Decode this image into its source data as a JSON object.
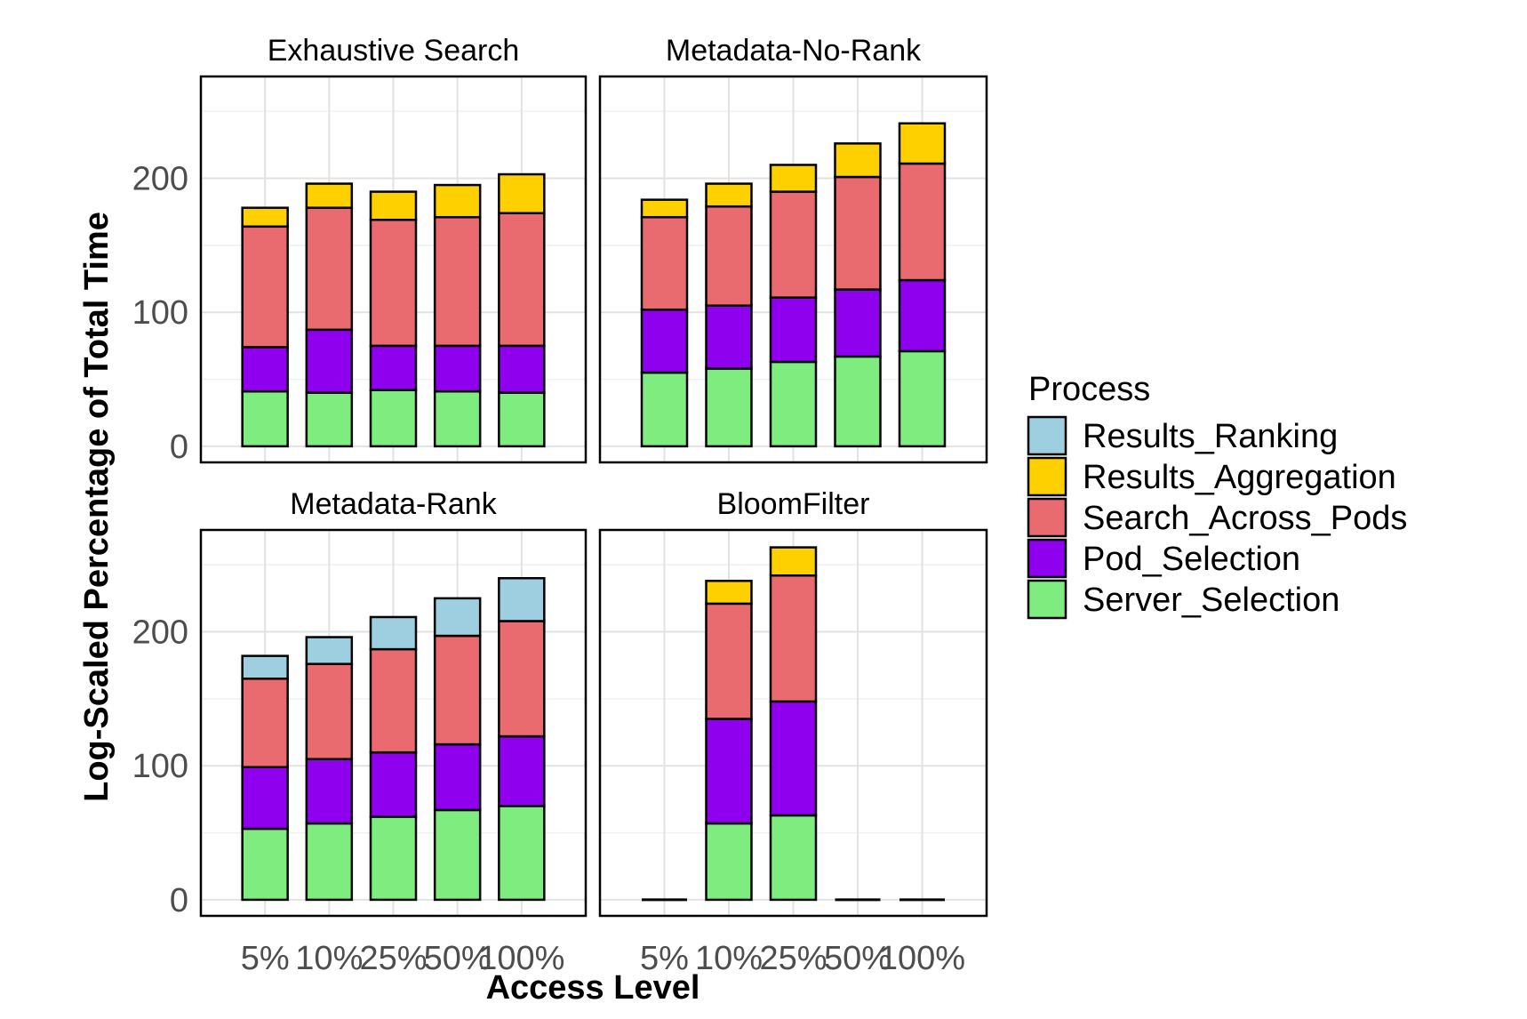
{
  "chart_data": {
    "type": "bar",
    "stacked": true,
    "facets": [
      "Exhaustive Search",
      "Metadata-No-Rank",
      "Metadata-Rank",
      "BloomFilter"
    ],
    "categories": [
      "5%",
      "10%",
      "25%",
      "50%",
      "100%"
    ],
    "xlabel": "Access Level",
    "ylabel": "Log-Scaled Percentage of Total Time",
    "ylim": [
      -12,
      276
    ],
    "yticks": [
      0,
      100,
      200
    ],
    "grid": true,
    "legend": {
      "title": "Process",
      "placement": "right",
      "entries": [
        "Results_Ranking",
        "Results_Aggregation",
        "Search_Across_Pods",
        "Pod_Selection",
        "Server_Selection"
      ]
    },
    "colors": {
      "Server_Selection": "#7fec7f",
      "Pod_Selection": "#8f00ef",
      "Search_Across_Pods": "#ea6b6f",
      "Results_Aggregation": "#ffd000",
      "Results_Ranking": "#9ecfe0"
    },
    "panels": [
      {
        "title": "Exhaustive Search",
        "series": [
          {
            "name": "Server_Selection",
            "values": [
              41,
              40,
              42,
              41,
              40
            ]
          },
          {
            "name": "Pod_Selection",
            "values": [
              33,
              47,
              33,
              34,
              35
            ]
          },
          {
            "name": "Search_Across_Pods",
            "values": [
              90,
              91,
              94,
              96,
              99
            ]
          },
          {
            "name": "Results_Aggregation",
            "values": [
              14,
              18,
              21,
              24,
              29
            ]
          },
          {
            "name": "Results_Ranking",
            "values": [
              0,
              0,
              0,
              0,
              0
            ]
          }
        ]
      },
      {
        "title": "Metadata-No-Rank",
        "series": [
          {
            "name": "Server_Selection",
            "values": [
              55,
              58,
              63,
              67,
              71
            ]
          },
          {
            "name": "Pod_Selection",
            "values": [
              47,
              47,
              48,
              50,
              53
            ]
          },
          {
            "name": "Search_Across_Pods",
            "values": [
              69,
              74,
              79,
              84,
              87
            ]
          },
          {
            "name": "Results_Aggregation",
            "values": [
              13,
              17,
              20,
              25,
              30
            ]
          },
          {
            "name": "Results_Ranking",
            "values": [
              0,
              0,
              0,
              0,
              0
            ]
          }
        ]
      },
      {
        "title": "Metadata-Rank",
        "series": [
          {
            "name": "Server_Selection",
            "values": [
              53,
              57,
              62,
              67,
              70
            ]
          },
          {
            "name": "Pod_Selection",
            "values": [
              46,
              48,
              48,
              49,
              52
            ]
          },
          {
            "name": "Search_Across_Pods",
            "values": [
              66,
              71,
              77,
              81,
              86
            ]
          },
          {
            "name": "Results_Aggregation",
            "values": [
              0,
              0,
              0,
              0,
              0
            ]
          },
          {
            "name": "Results_Ranking",
            "values": [
              17,
              20,
              24,
              28,
              32
            ]
          }
        ]
      },
      {
        "title": "BloomFilter",
        "series": [
          {
            "name": "Server_Selection",
            "values": [
              0,
              57,
              63,
              0,
              0
            ]
          },
          {
            "name": "Pod_Selection",
            "values": [
              0,
              78,
              85,
              0,
              0
            ]
          },
          {
            "name": "Search_Across_Pods",
            "values": [
              0,
              86,
              94,
              0,
              0
            ]
          },
          {
            "name": "Results_Aggregation",
            "values": [
              0,
              17,
              21,
              0,
              0
            ]
          },
          {
            "name": "Results_Ranking",
            "values": [
              0,
              0,
              0,
              0,
              0
            ]
          }
        ]
      }
    ]
  }
}
